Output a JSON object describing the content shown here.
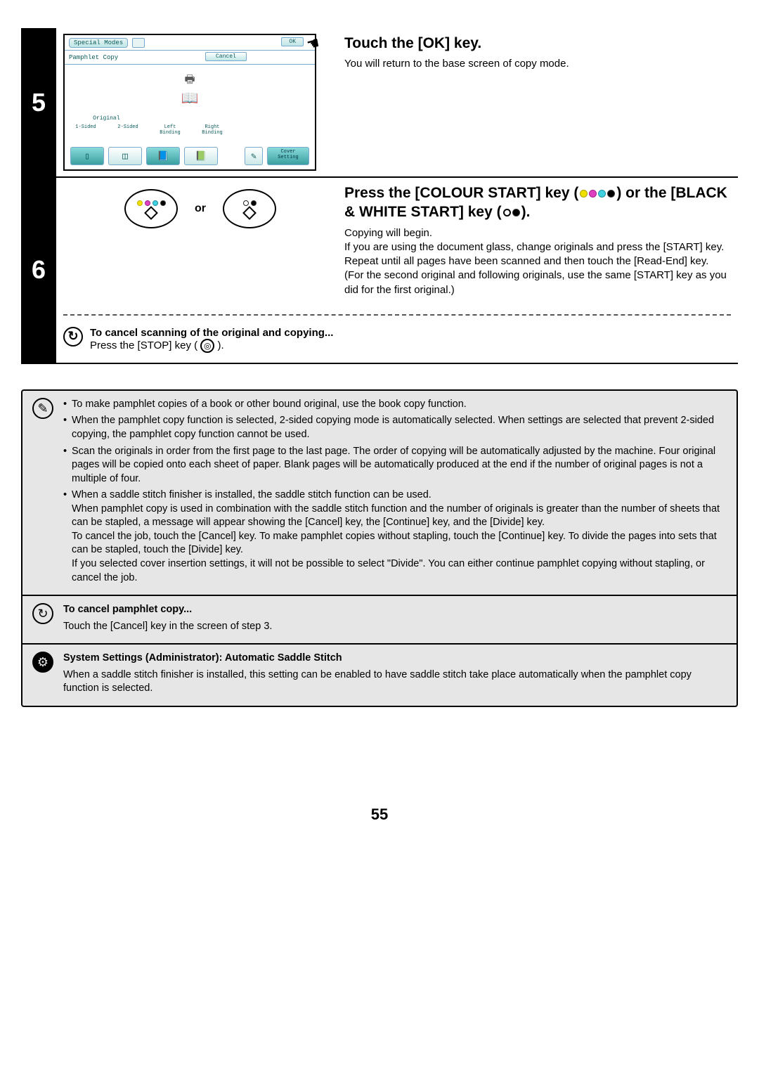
{
  "step5": {
    "number": "5",
    "title": "Touch the [OK] key.",
    "body": "You will return to the base screen of copy mode.",
    "screen": {
      "special_modes": "Special Modes",
      "ok": "OK",
      "pamphlet_copy": "Pamphlet Copy",
      "cancel": "Cancel",
      "original": "Original",
      "one_sided": "1-Sided",
      "two_sided": "2-Sided",
      "left_binding": "Left\nBinding",
      "right_binding": "Right\nBinding",
      "cover_setting": "Cover\nSetting"
    }
  },
  "step6": {
    "number": "6",
    "or": "or",
    "title_prefix": "Press the [COLOUR START] key (",
    "title_mid": ") or the [BLACK & WHITE START] key (",
    "title_suffix": ").",
    "body1": "Copying will begin.",
    "body2": "If you are using the document glass, change originals and press the [START] key. Repeat until all pages have been scanned and then touch the [Read-End] key. (For the second original and following originals, use the same [START] key as you did for the first original.)",
    "cancel_heading": "To cancel scanning of the original and copying...",
    "cancel_body_pre": "Press the [STOP] key (",
    "cancel_body_post": ").",
    "colors": {
      "yellow": "#f0e000",
      "magenta": "#e040c0",
      "cyan": "#40d0e0",
      "black": "#000000",
      "white": "#ffffff"
    }
  },
  "info": {
    "pencil_bullets": [
      "To make pamphlet copies of a book or other bound original, use the book copy function.",
      "When the pamphlet copy function is selected, 2-sided copying mode is automatically selected. When settings are selected that prevent 2-sided copying, the pamphlet copy function cannot be used.",
      "Scan the originals in order from the first page to the last page. The order of copying will be automatically adjusted by the machine. Four original pages will be copied onto each sheet of paper. Blank pages will be automatically produced at the end if the number of original pages is not a multiple of four.",
      "When a saddle stitch finisher is installed, the saddle stitch function can be used.\nWhen pamphlet copy is used in combination with the saddle stitch function and the number of originals is greater than the number of sheets that can be stapled, a message will appear showing the [Cancel] key, the [Continue] key, and the [Divide] key.\nTo cancel the job, touch the [Cancel] key. To make pamphlet copies without stapling, touch the [Continue] key. To divide the pages into sets that can be stapled, touch the [Divide] key.\nIf you selected cover insertion settings, it will not be possible to select \"Divide\". You can either continue pamphlet copying without stapling, or cancel the job."
    ],
    "cancel_heading": "To cancel pamphlet copy...",
    "cancel_body": "Touch the [Cancel] key in the screen of step 3.",
    "admin_heading": "System Settings (Administrator): Automatic Saddle Stitch",
    "admin_body": "When a saddle stitch finisher is installed, this setting can be enabled to have saddle stitch take place automatically when the pamphlet copy function is selected."
  },
  "page_number": "55"
}
